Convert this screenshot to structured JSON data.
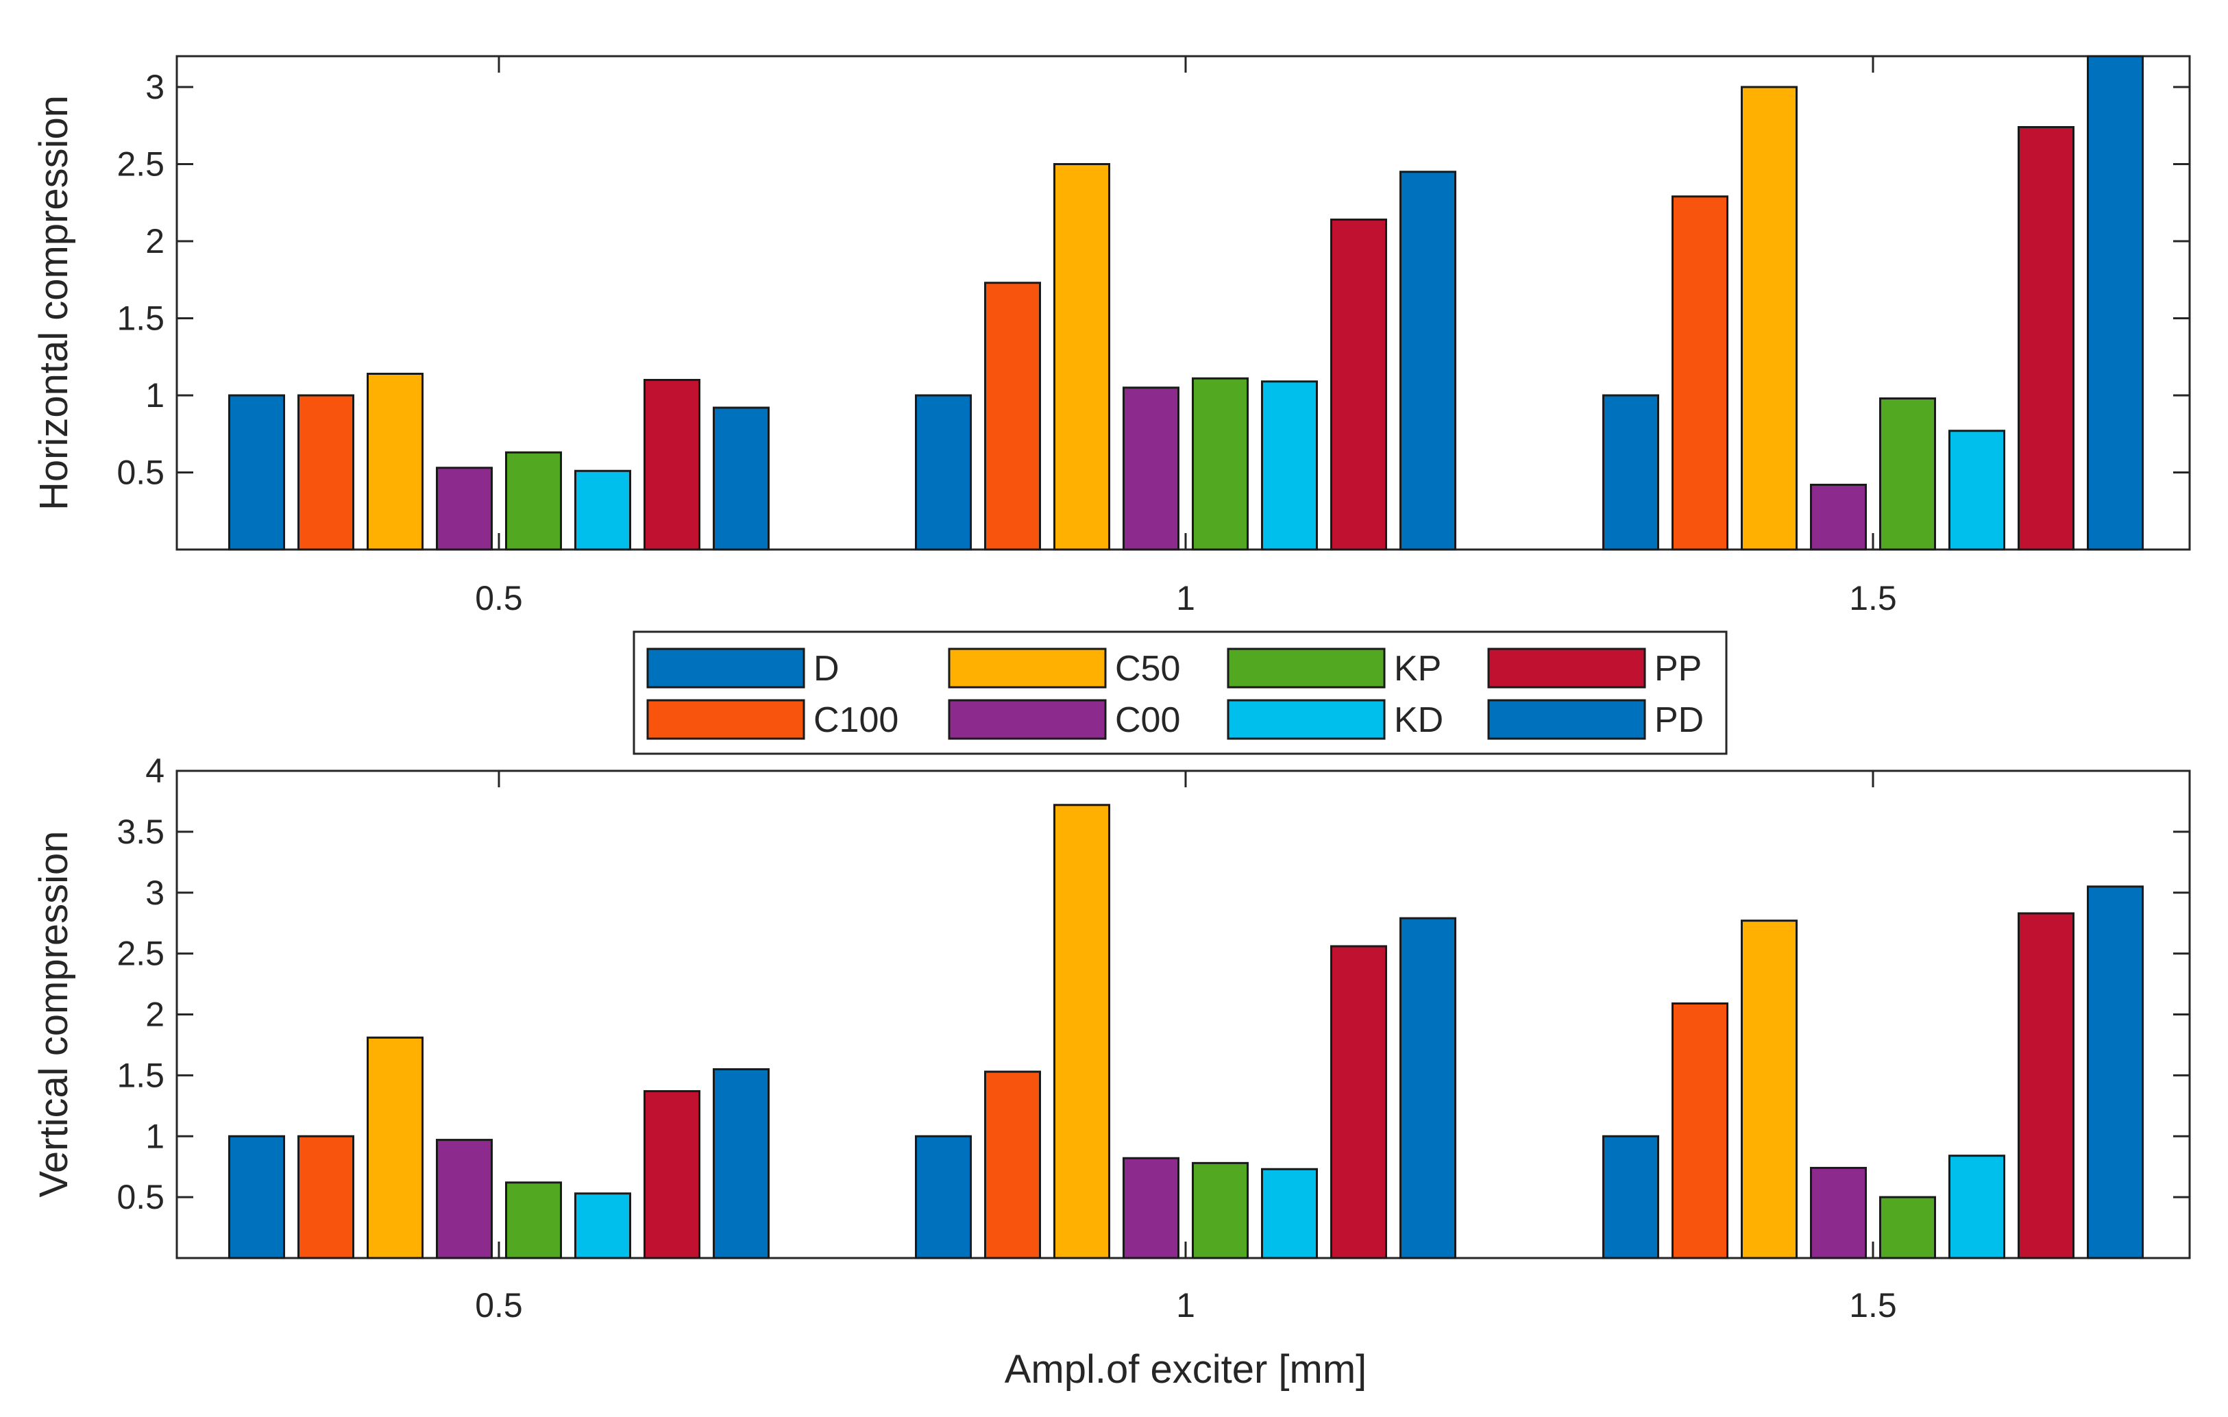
{
  "chart_data": [
    {
      "type": "bar",
      "id": "horizontal",
      "title": "",
      "xlabel": "",
      "ylabel": "Horizontal compression",
      "ylim": [
        0,
        3.2
      ],
      "yticks": [
        "0.5",
        "1",
        "1.5",
        "2",
        "2.5",
        "3"
      ],
      "ytick_values": [
        0.5,
        1,
        1.5,
        2,
        2.5,
        3
      ],
      "categories": [
        "0.5",
        "1",
        "1.5"
      ],
      "series": [
        {
          "name": "D",
          "color": "#0072bd",
          "values": [
            1.0,
            1.0,
            1.0
          ]
        },
        {
          "name": "C100",
          "color": "#f9540e",
          "values": [
            1.0,
            1.73,
            2.29
          ]
        },
        {
          "name": "C50",
          "color": "#ffb000",
          "values": [
            1.14,
            2.5,
            3.0
          ]
        },
        {
          "name": "C00",
          "color": "#8d2a8e",
          "values": [
            0.53,
            1.05,
            0.42
          ]
        },
        {
          "name": "KP",
          "color": "#53a822",
          "values": [
            0.63,
            1.11,
            0.98
          ]
        },
        {
          "name": "KD",
          "color": "#00bfec",
          "values": [
            0.51,
            1.09,
            0.77
          ]
        },
        {
          "name": "PP",
          "color": "#c01130",
          "values": [
            1.1,
            2.14,
            2.74
          ]
        },
        {
          "name": "PD",
          "color": "#0072bd",
          "values": [
            0.92,
            2.45,
            3.2
          ]
        }
      ]
    },
    {
      "type": "bar",
      "id": "vertical",
      "title": "",
      "xlabel": "Ampl.of exciter [mm]",
      "ylabel": "Vertical compression",
      "ylim": [
        0,
        4
      ],
      "yticks": [
        "0.5",
        "1",
        "1.5",
        "2",
        "2.5",
        "3",
        "3.5",
        "4"
      ],
      "ytick_values": [
        0.5,
        1,
        1.5,
        2,
        2.5,
        3,
        3.5,
        4
      ],
      "categories": [
        "0.5",
        "1",
        "1.5"
      ],
      "series": [
        {
          "name": "D",
          "color": "#0072bd",
          "values": [
            1.0,
            1.0,
            1.0
          ]
        },
        {
          "name": "C100",
          "color": "#f9540e",
          "values": [
            1.0,
            1.53,
            2.09
          ]
        },
        {
          "name": "C50",
          "color": "#ffb000",
          "values": [
            1.81,
            3.72,
            2.77
          ]
        },
        {
          "name": "C00",
          "color": "#8d2a8e",
          "values": [
            0.97,
            0.82,
            0.74
          ]
        },
        {
          "name": "KP",
          "color": "#53a822",
          "values": [
            0.62,
            0.78,
            0.5
          ]
        },
        {
          "name": "KD",
          "color": "#00bfec",
          "values": [
            0.53,
            0.73,
            0.84
          ]
        },
        {
          "name": "PP",
          "color": "#c01130",
          "values": [
            1.37,
            2.56,
            2.83
          ]
        },
        {
          "name": "PD",
          "color": "#0072bd",
          "values": [
            1.55,
            2.79,
            3.05
          ]
        }
      ]
    }
  ],
  "legend": {
    "placement": "between-panels",
    "entries": [
      {
        "label": "D",
        "color": "#0072bd"
      },
      {
        "label": "C100",
        "color": "#f9540e"
      },
      {
        "label": "C50",
        "color": "#ffb000"
      },
      {
        "label": "C00",
        "color": "#8d2a8e"
      },
      {
        "label": "KP",
        "color": "#53a822"
      },
      {
        "label": "KD",
        "color": "#00bfec"
      },
      {
        "label": "PP",
        "color": "#c01130"
      },
      {
        "label": "PD",
        "color": "#0072bd"
      }
    ]
  }
}
